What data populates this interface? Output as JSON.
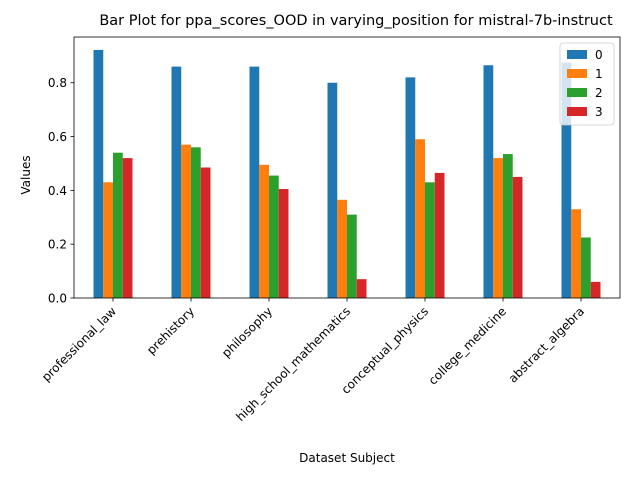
{
  "chart_data": {
    "type": "bar",
    "title": "Bar Plot for ppa_scores_OOD in varying_position for mistral-7b-instruct",
    "xlabel": "Dataset Subject",
    "ylabel": "Values",
    "categories": [
      "professional_law",
      "prehistory",
      "philosophy",
      "high_school_mathematics",
      "conceptual_physics",
      "college_medicine",
      "abstract_algebra"
    ],
    "series": [
      {
        "name": "0",
        "color": "#1f77b4",
        "values": [
          0.922,
          0.86,
          0.86,
          0.8,
          0.82,
          0.865,
          0.875
        ]
      },
      {
        "name": "1",
        "color": "#ff7f0e",
        "values": [
          0.43,
          0.57,
          0.495,
          0.365,
          0.59,
          0.52,
          0.33
        ]
      },
      {
        "name": "2",
        "color": "#2ca02c",
        "values": [
          0.54,
          0.56,
          0.455,
          0.31,
          0.43,
          0.535,
          0.225
        ]
      },
      {
        "name": "3",
        "color": "#d62728",
        "values": [
          0.52,
          0.485,
          0.405,
          0.07,
          0.465,
          0.45,
          0.06
        ]
      }
    ],
    "ylim": [
      0,
      0.97
    ],
    "yticks": [
      0.0,
      0.2,
      0.4,
      0.6,
      0.8
    ],
    "ytick_labels": [
      "0.0",
      "0.2",
      "0.4",
      "0.6",
      "0.8"
    ],
    "grid": false,
    "legend_position": "top-right"
  }
}
